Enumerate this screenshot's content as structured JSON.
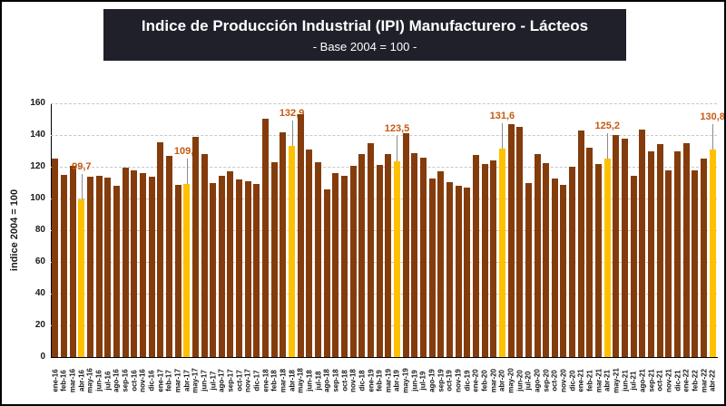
{
  "title": "Indice de Producción Industrial (IPI) Manufacturero - Lácteos",
  "subtitle": "- Base 2004 = 100 -",
  "chart_data": {
    "type": "bar",
    "title": "Indice de Producción Industrial (IPI) Manufacturero - Lácteos",
    "subtitle": "- Base 2004 = 100 -",
    "xlabel": "",
    "ylabel": "indice 2004 = 100",
    "ylim": [
      0,
      160
    ],
    "ytick_step": 20,
    "grid": "horizontal-dashed",
    "legend": "none",
    "bar_color": "#843C0C",
    "highlight_color": "#FFC000",
    "label_color": "#C55A11",
    "categories": [
      "ene-16",
      "feb-16",
      "mar-16",
      "abr-16",
      "may-16",
      "jun-16",
      "jul-16",
      "ago-16",
      "sep-16",
      "oct-16",
      "nov-16",
      "dic-16",
      "ene-17",
      "feb-17",
      "mar-17",
      "abr-17",
      "may-17",
      "jun-17",
      "jul-17",
      "ago-17",
      "sep-17",
      "oct-17",
      "nov-17",
      "dic-17",
      "ene-18",
      "feb-18",
      "mar-18",
      "abr-18",
      "may-18",
      "jun-18",
      "jul-18",
      "ago-18",
      "sep-18",
      "oct-18",
      "nov-18",
      "dic-18",
      "ene-19",
      "feb-19",
      "mar-19",
      "abr-19",
      "may-19",
      "jun-19",
      "jul-19",
      "ago-19",
      "sep-19",
      "oct-19",
      "nov-19",
      "dic-19",
      "ene-20",
      "feb-20",
      "mar-20",
      "abr-20",
      "may-20",
      "jun-20",
      "jul-20",
      "ago-20",
      "sep-20",
      "oct-20",
      "nov-20",
      "dic-20",
      "ene-21",
      "feb-21",
      "mar-21",
      "abr-21",
      "may-21",
      "jun-21",
      "jul-21",
      "ago-21",
      "sep-21",
      "oct-21",
      "nov-21",
      "dic-21",
      "ene-22",
      "feb-22",
      "mar-22",
      "abr-22"
    ],
    "values": [
      125.3,
      115.0,
      120.5,
      99.7,
      114.0,
      114.5,
      113.0,
      108.0,
      119.5,
      117.5,
      116.0,
      113.5,
      135.5,
      127.0,
      108.5,
      109.0,
      139.0,
      128.0,
      110.0,
      114.5,
      117.0,
      112.0,
      111.0,
      109.0,
      150.5,
      123.0,
      142.0,
      132.9,
      153.0,
      131.0,
      123.0,
      106.0,
      116.0,
      114.5,
      120.5,
      128.0,
      135.0,
      121.0,
      128.0,
      123.5,
      141.0,
      128.5,
      126.0,
      112.5,
      117.0,
      110.5,
      108.0,
      107.0,
      127.5,
      122.0,
      124.0,
      131.6,
      147.0,
      145.0,
      110.0,
      128.0,
      122.5,
      112.5,
      108.5,
      120.0,
      143.0,
      132.0,
      121.5,
      125.2,
      140.0,
      138.0,
      114.5,
      143.5,
      130.0,
      134.5,
      118.0,
      129.5,
      135.0,
      117.5,
      125.0,
      130.8
    ],
    "highlights": [
      {
        "index": 3,
        "category": "abr-16",
        "value": 99.7,
        "label": "99,7"
      },
      {
        "index": 15,
        "category": "abr-17",
        "value": 109.0,
        "label": "109,0"
      },
      {
        "index": 27,
        "category": "abr-18",
        "value": 132.9,
        "label": "132,9"
      },
      {
        "index": 39,
        "category": "abr-19",
        "value": 123.5,
        "label": "123,5"
      },
      {
        "index": 51,
        "category": "abr-20",
        "value": 131.6,
        "label": "131,6"
      },
      {
        "index": 63,
        "category": "abr-21",
        "value": 125.2,
        "label": "125,2"
      },
      {
        "index": 75,
        "category": "abr-22",
        "value": 130.8,
        "label": "130,8"
      }
    ]
  }
}
